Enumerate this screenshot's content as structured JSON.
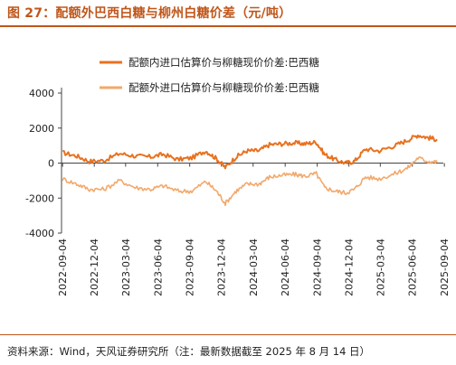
{
  "title": "图 27：配额外巴西白糖与柳州白糖价差（元/吨）",
  "source": "资料来源：Wind，天风证券研究所（注：最新数据截至 2025 年 8 月 14 日）",
  "colors": {
    "title": "#c0561a",
    "series1": "#e8711f",
    "series2": "#f3a86a",
    "axis": "#444444"
  },
  "chart_data": {
    "type": "line",
    "title": "",
    "xlabel": "",
    "ylabel": "",
    "ylim": [
      -4000,
      4000
    ],
    "yticks": [
      "4000",
      "2000",
      "0",
      "-2000",
      "-4000"
    ],
    "xlim": [
      "2022-09-01",
      "2025-09-01"
    ],
    "xticks": [
      "2022-09-04",
      "2022-12-04",
      "2023-03-04",
      "2023-06-04",
      "2023-09-04",
      "2023-12-04",
      "2024-03-04",
      "2024-06-04",
      "2024-09-04",
      "2024-12-04",
      "2025-03-04",
      "2025-06-04",
      "2025-09-04"
    ],
    "legend_position": "top",
    "series": [
      {
        "name": "配额内进口估算价与柳糖现价价差:巴西糖",
        "points": [
          [
            "2022-09-04",
            600
          ],
          [
            "2022-10-15",
            400
          ],
          [
            "2022-11-20",
            100
          ],
          [
            "2023-01-01",
            150
          ],
          [
            "2023-02-15",
            550
          ],
          [
            "2023-04-01",
            400
          ],
          [
            "2023-05-15",
            350
          ],
          [
            "2023-06-20",
            500
          ],
          [
            "2023-08-01",
            200
          ],
          [
            "2023-09-10",
            300
          ],
          [
            "2023-10-20",
            700
          ],
          [
            "2023-11-20",
            250
          ],
          [
            "2023-12-15",
            -250
          ],
          [
            "2024-01-15",
            350
          ],
          [
            "2024-02-15",
            700
          ],
          [
            "2024-03-20",
            700
          ],
          [
            "2024-04-20",
            1050
          ],
          [
            "2024-05-25",
            1100
          ],
          [
            "2024-07-01",
            1150
          ],
          [
            "2024-08-01",
            1100
          ],
          [
            "2024-09-01",
            1200
          ],
          [
            "2024-09-25",
            500
          ],
          [
            "2024-10-25",
            200
          ],
          [
            "2024-11-25",
            0
          ],
          [
            "2024-12-20",
            100
          ],
          [
            "2025-01-20",
            800
          ],
          [
            "2025-03-01",
            700
          ],
          [
            "2025-04-15",
            1000
          ],
          [
            "2025-05-20",
            1300
          ],
          [
            "2025-06-20",
            1600
          ],
          [
            "2025-07-20",
            1450
          ],
          [
            "2025-08-14",
            1350
          ]
        ]
      },
      {
        "name": "配额外进口估算价与柳糖现价价差:巴西糖",
        "points": [
          [
            "2022-09-04",
            -900
          ],
          [
            "2022-10-15",
            -1200
          ],
          [
            "2022-11-20",
            -1500
          ],
          [
            "2023-01-01",
            -1500
          ],
          [
            "2023-02-15",
            -1000
          ],
          [
            "2023-04-01",
            -1400
          ],
          [
            "2023-05-15",
            -1500
          ],
          [
            "2023-06-20",
            -1300
          ],
          [
            "2023-08-01",
            -1600
          ],
          [
            "2023-09-10",
            -1600
          ],
          [
            "2023-10-20",
            -1050
          ],
          [
            "2023-11-20",
            -1600
          ],
          [
            "2023-12-15",
            -2300
          ],
          [
            "2024-01-15",
            -1600
          ],
          [
            "2024-02-15",
            -1200
          ],
          [
            "2024-03-20",
            -1200
          ],
          [
            "2024-04-20",
            -800
          ],
          [
            "2024-05-25",
            -700
          ],
          [
            "2024-07-01",
            -650
          ],
          [
            "2024-08-01",
            -750
          ],
          [
            "2024-09-01",
            -600
          ],
          [
            "2024-09-25",
            -1400
          ],
          [
            "2024-10-25",
            -1600
          ],
          [
            "2024-11-25",
            -1700
          ],
          [
            "2024-12-20",
            -1500
          ],
          [
            "2025-01-20",
            -800
          ],
          [
            "2025-03-01",
            -900
          ],
          [
            "2025-04-15",
            -600
          ],
          [
            "2025-05-20",
            -300
          ],
          [
            "2025-06-20",
            300
          ],
          [
            "2025-07-20",
            100
          ],
          [
            "2025-08-14",
            50
          ]
        ]
      }
    ]
  }
}
